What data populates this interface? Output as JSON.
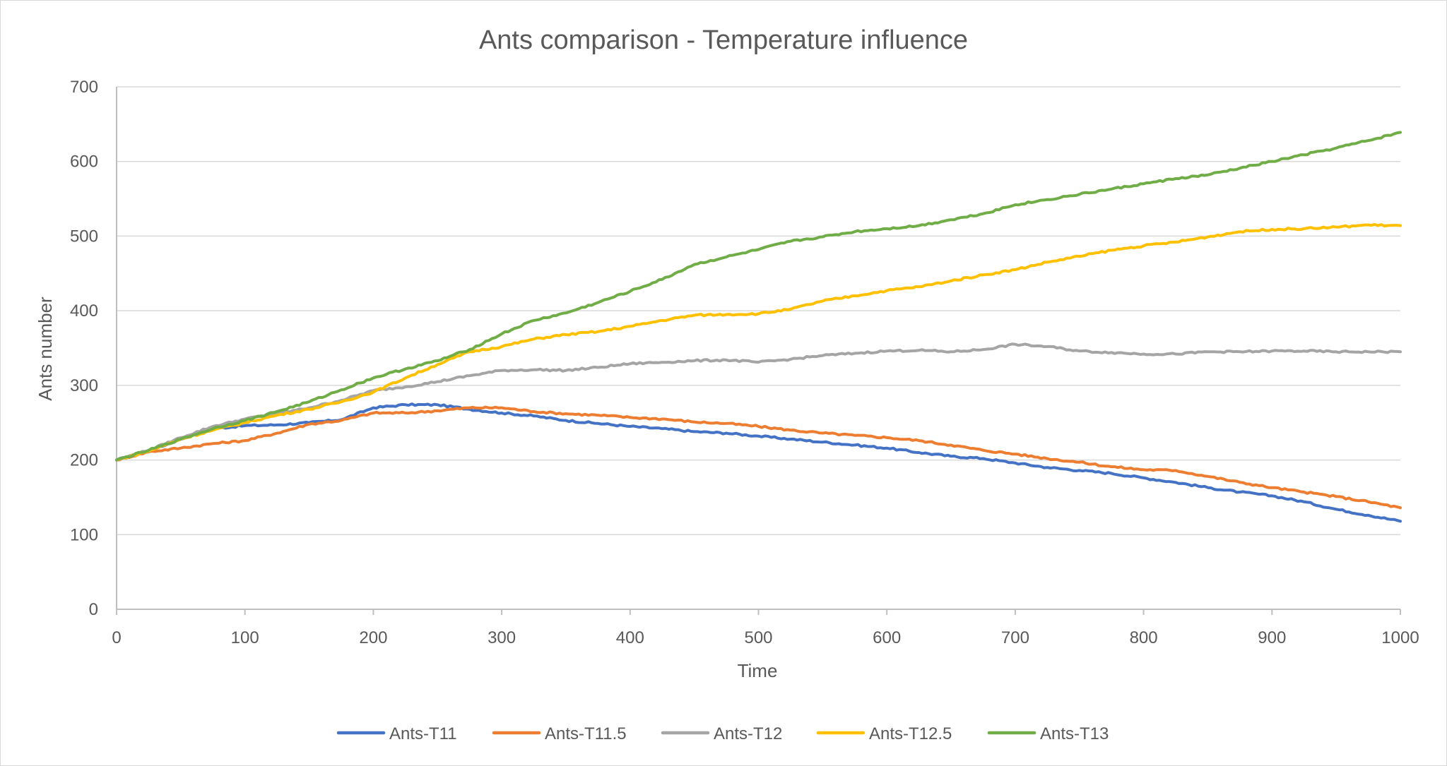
{
  "chart_data": {
    "type": "line",
    "title": "Ants comparison - Temperature influence",
    "xlabel": "Time",
    "ylabel": "Ants number",
    "xlim": [
      0,
      1000
    ],
    "ylim": [
      0,
      700
    ],
    "x_ticks": [
      0,
      100,
      200,
      300,
      400,
      500,
      600,
      700,
      800,
      900,
      1000
    ],
    "y_ticks": [
      0,
      100,
      200,
      300,
      400,
      500,
      600,
      700
    ],
    "x_tick_labels": [
      "0",
      "100",
      "200",
      "300",
      "400",
      "500",
      "600",
      "700",
      "800",
      "900",
      "1000"
    ],
    "y_tick_labels": [
      "0",
      "100",
      "200",
      "300",
      "400",
      "500",
      "600",
      "700"
    ],
    "grid": "horizontal",
    "legend_position": "bottom",
    "x": [
      0,
      25,
      50,
      75,
      100,
      125,
      150,
      175,
      200,
      225,
      250,
      275,
      300,
      325,
      350,
      375,
      400,
      425,
      450,
      475,
      500,
      525,
      550,
      575,
      600,
      625,
      650,
      675,
      700,
      725,
      750,
      775,
      800,
      825,
      850,
      875,
      900,
      925,
      950,
      975,
      1000
    ],
    "series": [
      {
        "name": "Ants-T11",
        "color": "#4472c4",
        "values": [
          200,
          212,
          228,
          242,
          246,
          247,
          250,
          254,
          270,
          274,
          274,
          268,
          263,
          259,
          253,
          249,
          245,
          242,
          238,
          236,
          232,
          228,
          224,
          220,
          216,
          210,
          205,
          202,
          196,
          190,
          186,
          182,
          176,
          170,
          163,
          157,
          152,
          144,
          134,
          126,
          118
        ]
      },
      {
        "name": "Ants-T11.5",
        "color": "#ed7d31",
        "values": [
          200,
          211,
          216,
          222,
          226,
          236,
          248,
          253,
          263,
          263,
          266,
          270,
          270,
          265,
          262,
          260,
          257,
          255,
          251,
          249,
          245,
          240,
          236,
          233,
          230,
          226,
          220,
          213,
          208,
          202,
          197,
          191,
          187,
          186,
          178,
          170,
          163,
          157,
          151,
          144,
          136
        ]
      },
      {
        "name": "Ants-T12",
        "color": "#a5a5a5",
        "values": [
          200,
          213,
          230,
          245,
          255,
          262,
          270,
          280,
          293,
          298,
          305,
          313,
          320,
          321,
          320,
          324,
          329,
          331,
          333,
          334,
          331,
          335,
          340,
          343,
          346,
          347,
          345,
          348,
          355,
          352,
          346,
          344,
          342,
          342,
          345,
          345,
          346,
          346,
          345,
          345,
          345
        ]
      },
      {
        "name": "Ants-T12.5",
        "color": "#ffc000",
        "values": [
          200,
          212,
          228,
          240,
          250,
          260,
          268,
          278,
          291,
          310,
          328,
          345,
          352,
          362,
          368,
          372,
          379,
          387,
          394,
          395,
          396,
          402,
          413,
          420,
          427,
          432,
          440,
          448,
          455,
          465,
          473,
          481,
          487,
          492,
          499,
          506,
          509,
          510,
          512,
          515,
          514
        ]
      },
      {
        "name": "Ants-T13",
        "color": "#70ad47",
        "values": [
          200,
          213,
          228,
          242,
          253,
          265,
          278,
          294,
          310,
          322,
          333,
          348,
          369,
          387,
          397,
          411,
          426,
          442,
          462,
          472,
          482,
          493,
          499,
          506,
          510,
          514,
          522,
          530,
          542,
          549,
          556,
          563,
          570,
          577,
          582,
          591,
          600,
          609,
          618,
          628,
          639
        ]
      }
    ]
  }
}
